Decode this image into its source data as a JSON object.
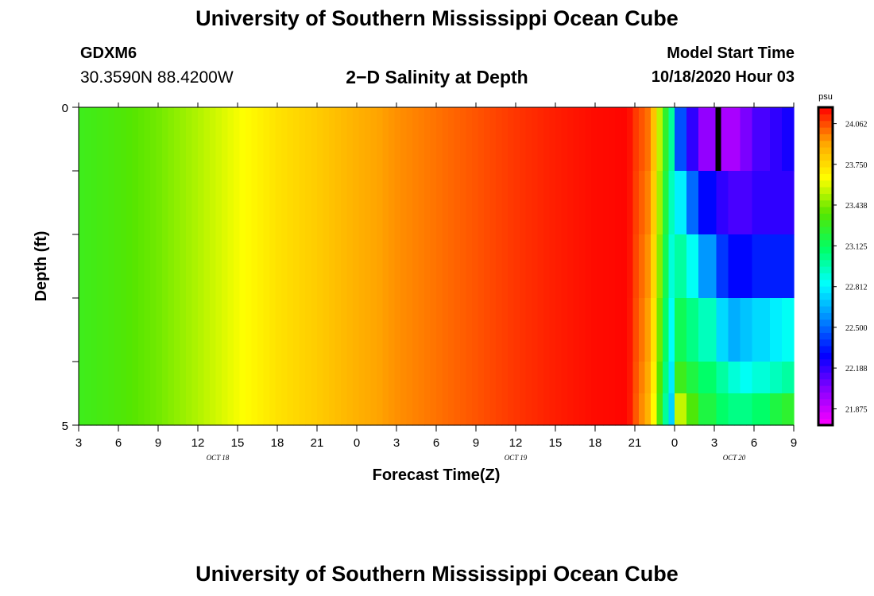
{
  "header": {
    "title": "University of Southern Mississippi Ocean Cube",
    "station_id": "GDXM6",
    "coordinates": "30.3590N 88.4200W",
    "plot_title": "2−D Salinity at Depth",
    "model_start_label": "Model Start Time",
    "model_start_value": "10/18/2020 Hour 03"
  },
  "footer": {
    "title": "University of Southern Mississippi Ocean Cube"
  },
  "chart_data": {
    "type": "heatmap",
    "title": "2−D Salinity at Depth",
    "xlabel": "Forecast Time(Z)",
    "ylabel": "Depth (ft)",
    "x_range_hours": [
      0,
      54
    ],
    "x_note": "hours since 10/18/2020 03Z",
    "y_range": [
      0,
      5
    ],
    "y_tick_labels": [
      "0",
      "5"
    ],
    "y_minor_ticks": [
      0,
      1,
      2,
      3,
      4,
      5
    ],
    "x_ticks": [
      {
        "hour": 0,
        "label": "3"
      },
      {
        "hour": 3,
        "label": "6"
      },
      {
        "hour": 6,
        "label": "9"
      },
      {
        "hour": 9,
        "label": "12"
      },
      {
        "hour": 12,
        "label": "15"
      },
      {
        "hour": 15,
        "label": "18"
      },
      {
        "hour": 18,
        "label": "21"
      },
      {
        "hour": 21,
        "label": "0"
      },
      {
        "hour": 24,
        "label": "3"
      },
      {
        "hour": 27,
        "label": "6"
      },
      {
        "hour": 30,
        "label": "9"
      },
      {
        "hour": 33,
        "label": "12"
      },
      {
        "hour": 36,
        "label": "15"
      },
      {
        "hour": 39,
        "label": "18"
      },
      {
        "hour": 42,
        "label": "21"
      },
      {
        "hour": 45,
        "label": "0"
      },
      {
        "hour": 48,
        "label": "3"
      },
      {
        "hour": 51,
        "label": "6"
      },
      {
        "hour": 54,
        "label": "9"
      }
    ],
    "date_labels": [
      {
        "hour": 10.5,
        "label": "OCT 18"
      },
      {
        "hour": 33,
        "label": "OCT 19"
      },
      {
        "hour": 49.5,
        "label": "OCT 20"
      }
    ],
    "colorbar": {
      "unit": "psu",
      "min": 21.75,
      "max": 24.1875,
      "tick_values": [
        21.875,
        22.188,
        22.5,
        22.812,
        23.125,
        23.438,
        23.75,
        24.062
      ],
      "tick_labels": [
        "21.875",
        "22.188",
        "22.500",
        "22.812",
        "23.125",
        "23.438",
        "23.750",
        "24.062"
      ],
      "colors_low_to_high": [
        "#ff00ff",
        "#8a00ff",
        "#0000ff",
        "#0088ff",
        "#00ffff",
        "#00ff66",
        "#55e600",
        "#ffff00",
        "#ffa500",
        "#ff0000"
      ]
    },
    "surface_series": {
      "hours": [
        0,
        3,
        6,
        9,
        12,
        15,
        18,
        21,
        24,
        27,
        30,
        33,
        36,
        39,
        41.5,
        42,
        43,
        43.5,
        44,
        44.5,
        45,
        46,
        47,
        48,
        49,
        50,
        51,
        54
      ],
      "values": [
        23.3,
        23.35,
        23.42,
        23.52,
        23.63,
        23.73,
        23.8,
        23.88,
        23.95,
        24.0,
        24.05,
        24.1,
        24.14,
        24.17,
        24.18,
        24.1,
        24.0,
        23.8,
        23.45,
        23.15,
        22.9,
        22.65,
        22.45,
        22.4,
        22.38,
        22.4,
        22.4,
        22.4
      ]
    },
    "layer_offsets_by_depth": [
      {
        "depth_ft": 0.25,
        "after_hour": 45,
        "values": [
          22.45,
          22.2,
          22.0,
          21.95,
          21.95,
          22.05,
          22.15,
          22.2,
          22.25
        ]
      },
      {
        "depth_ft": 1.25,
        "after_hour": 45,
        "values": [
          22.8,
          22.5,
          22.3,
          22.2,
          22.15,
          22.15,
          22.2,
          22.2,
          22.2
        ]
      },
      {
        "depth_ft": 2.25,
        "after_hour": 45,
        "values": [
          23.0,
          22.85,
          22.6,
          22.4,
          22.3,
          22.3,
          22.35,
          22.35,
          22.35
        ]
      },
      {
        "depth_ft": 3.25,
        "after_hour": 45,
        "values": [
          23.15,
          23.05,
          22.95,
          22.75,
          22.65,
          22.7,
          22.75,
          22.8,
          22.85
        ]
      },
      {
        "depth_ft": 4.25,
        "after_hour": 45,
        "values": [
          23.3,
          23.2,
          23.1,
          23.0,
          22.9,
          22.85,
          22.9,
          22.95,
          23.0
        ]
      },
      {
        "depth_ft": 4.75,
        "after_hour": 45,
        "values": [
          23.55,
          23.35,
          23.2,
          23.1,
          23.05,
          23.05,
          23.1,
          23.2,
          23.25
        ]
      }
    ],
    "marker": {
      "hour": 48.3,
      "depth_from": 0,
      "depth_to": 1,
      "color": "#000000"
    }
  }
}
